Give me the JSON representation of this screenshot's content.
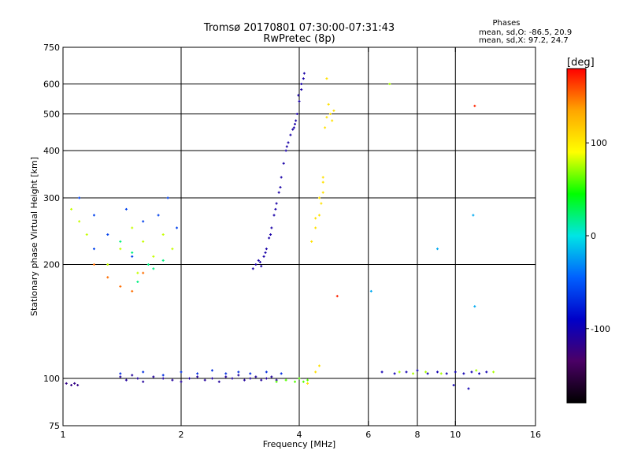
{
  "chart_data": {
    "type": "scatter",
    "title": "Tromsø 20170801 07:30:00-07:31:43",
    "subtitle": "RwPretec (8p)",
    "xlabel": "Frequency [MHz]",
    "ylabel": "Stationary phase Virtual Height [km]",
    "x_scale": "log",
    "y_scale": "log",
    "xlim": [
      1,
      16
    ],
    "ylim": [
      75,
      750
    ],
    "x_ticks": [
      1,
      2,
      4,
      6,
      8,
      10,
      16
    ],
    "y_ticks": [
      75,
      100,
      200,
      300,
      400,
      500,
      600,
      750
    ],
    "x_major_grid": [
      2,
      4
    ],
    "x_minor_grid": [
      6,
      8,
      10
    ],
    "y_grid": [
      100,
      200,
      300,
      400,
      500,
      600
    ],
    "grid": true,
    "stats": {
      "heading": "Phases",
      "line1": "mean, sd,O: -86.5, 20.9",
      "line2": "mean, sd,X:  97.2, 24.7"
    },
    "colorbar": {
      "label": "[deg]",
      "range": [
        -180,
        180
      ],
      "ticks": [
        100,
        0,
        -100
      ],
      "colors": [
        "#ff0000",
        "#ffa500",
        "#ffff00",
        "#00ff00",
        "#00e5e5",
        "#0060ff",
        "#0000c8",
        "#4b0066",
        "#000000"
      ]
    },
    "series": [
      {
        "phase": -120,
        "points": [
          [
            1.02,
            97
          ],
          [
            1.05,
            96
          ],
          [
            1.07,
            97
          ],
          [
            1.09,
            96
          ]
        ]
      },
      {
        "phase": -110,
        "points": [
          [
            1.4,
            101
          ],
          [
            1.45,
            99
          ],
          [
            1.5,
            102
          ],
          [
            1.55,
            100
          ],
          [
            1.6,
            98
          ],
          [
            1.7,
            101
          ],
          [
            1.8,
            100
          ],
          [
            1.9,
            99
          ],
          [
            2.0,
            98
          ],
          [
            2.1,
            100
          ],
          [
            2.2,
            101
          ],
          [
            2.3,
            99
          ],
          [
            2.4,
            100
          ],
          [
            2.5,
            98
          ],
          [
            2.6,
            101
          ],
          [
            2.7,
            100
          ],
          [
            2.8,
            102
          ],
          [
            2.9,
            99
          ],
          [
            3.0,
            100
          ],
          [
            3.1,
            101
          ],
          [
            3.2,
            99
          ],
          [
            3.3,
            100
          ],
          [
            3.4,
            101
          ],
          [
            3.5,
            99
          ]
        ]
      },
      {
        "phase": -70,
        "points": [
          [
            1.4,
            103
          ],
          [
            1.6,
            104
          ],
          [
            1.8,
            102
          ],
          [
            2.0,
            104
          ],
          [
            2.2,
            103
          ],
          [
            2.4,
            105
          ],
          [
            2.6,
            103
          ],
          [
            2.8,
            104
          ],
          [
            3.0,
            103
          ],
          [
            3.3,
            104
          ],
          [
            3.6,
            103
          ]
        ]
      },
      {
        "phase": -105,
        "points": [
          [
            3.05,
            195
          ],
          [
            3.1,
            200
          ],
          [
            3.15,
            205
          ],
          [
            3.2,
            198
          ],
          [
            3.25,
            210
          ],
          [
            3.3,
            220
          ],
          [
            3.35,
            235
          ],
          [
            3.4,
            250
          ],
          [
            3.45,
            270
          ],
          [
            3.5,
            290
          ],
          [
            3.55,
            310
          ],
          [
            3.6,
            340
          ],
          [
            3.65,
            370
          ],
          [
            3.7,
            400
          ],
          [
            3.75,
            420
          ],
          [
            3.8,
            440
          ],
          [
            3.85,
            455
          ],
          [
            3.9,
            470
          ],
          [
            3.95,
            500
          ],
          [
            4.0,
            540
          ],
          [
            4.05,
            580
          ],
          [
            4.1,
            620
          ],
          [
            4.12,
            640
          ],
          [
            4.05,
            600
          ],
          [
            3.98,
            560
          ],
          [
            3.92,
            480
          ],
          [
            3.88,
            460
          ],
          [
            3.72,
            410
          ],
          [
            3.58,
            320
          ],
          [
            3.48,
            280
          ],
          [
            3.38,
            240
          ],
          [
            3.28,
            215
          ],
          [
            3.18,
            203
          ]
        ]
      },
      {
        "phase": 105,
        "points": [
          [
            4.2,
            97
          ],
          [
            4.4,
            104
          ],
          [
            4.5,
            108
          ],
          [
            4.3,
            230
          ],
          [
            4.4,
            250
          ],
          [
            4.5,
            270
          ],
          [
            4.55,
            290
          ],
          [
            4.6,
            310
          ],
          [
            4.4,
            265
          ],
          [
            4.5,
            300
          ],
          [
            4.6,
            330
          ],
          [
            4.65,
            460
          ],
          [
            4.7,
            490
          ],
          [
            4.8,
            500
          ],
          [
            4.9,
            510
          ],
          [
            4.75,
            530
          ],
          [
            4.7,
            620
          ],
          [
            4.85,
            480
          ],
          [
            4.6,
            340
          ]
        ]
      },
      {
        "phase": 60,
        "points": [
          [
            3.5,
            98
          ],
          [
            3.7,
            99
          ],
          [
            3.9,
            98
          ],
          [
            4.0,
            100
          ],
          [
            4.1,
            98
          ],
          [
            4.2,
            99
          ]
        ]
      },
      {
        "phase": 80,
        "points": [
          [
            1.05,
            280
          ],
          [
            1.1,
            260
          ],
          [
            1.15,
            240
          ],
          [
            1.4,
            220
          ],
          [
            1.5,
            250
          ],
          [
            1.6,
            230
          ],
          [
            1.7,
            210
          ],
          [
            1.8,
            240
          ],
          [
            1.9,
            220
          ],
          [
            1.3,
            200
          ],
          [
            1.55,
            190
          ]
        ]
      },
      {
        "phase": -60,
        "points": [
          [
            1.1,
            300
          ],
          [
            1.2,
            270
          ],
          [
            1.3,
            240
          ],
          [
            1.45,
            280
          ],
          [
            1.6,
            260
          ],
          [
            1.75,
            270
          ],
          [
            1.85,
            300
          ],
          [
            1.95,
            250
          ],
          [
            1.2,
            220
          ],
          [
            1.5,
            210
          ]
        ]
      },
      {
        "phase": 20,
        "points": [
          [
            1.4,
            230
          ],
          [
            1.5,
            215
          ],
          [
            1.65,
            200
          ],
          [
            1.7,
            195
          ],
          [
            1.55,
            180
          ],
          [
            1.8,
            205
          ]
        ]
      },
      {
        "phase": 150,
        "points": [
          [
            1.2,
            200
          ],
          [
            1.3,
            185
          ],
          [
            1.4,
            175
          ],
          [
            1.5,
            170
          ],
          [
            1.6,
            190
          ]
        ]
      },
      {
        "phase": -100,
        "points": [
          [
            6.5,
            104
          ],
          [
            7.0,
            103
          ],
          [
            7.5,
            104
          ],
          [
            8.0,
            105
          ],
          [
            8.5,
            103
          ],
          [
            9.0,
            104
          ],
          [
            9.5,
            103
          ],
          [
            10.0,
            104
          ],
          [
            10.5,
            103
          ],
          [
            11.0,
            104
          ],
          [
            11.5,
            103
          ],
          [
            12.0,
            104
          ],
          [
            10.8,
            94
          ],
          [
            9.9,
            96
          ]
        ]
      },
      {
        "phase": 75,
        "points": [
          [
            7.2,
            104
          ],
          [
            7.8,
            103
          ],
          [
            8.4,
            104
          ],
          [
            9.2,
            103
          ],
          [
            11.3,
            105
          ],
          [
            12.5,
            104
          ],
          [
            6.8,
            600
          ]
        ]
      },
      {
        "phase": 170,
        "points": [
          [
            11.2,
            525
          ],
          [
            5.0,
            165
          ]
        ]
      },
      {
        "phase": -20,
        "points": [
          [
            11.1,
            270
          ],
          [
            9.0,
            220
          ],
          [
            11.2,
            155
          ],
          [
            6.1,
            170
          ]
        ]
      }
    ]
  }
}
